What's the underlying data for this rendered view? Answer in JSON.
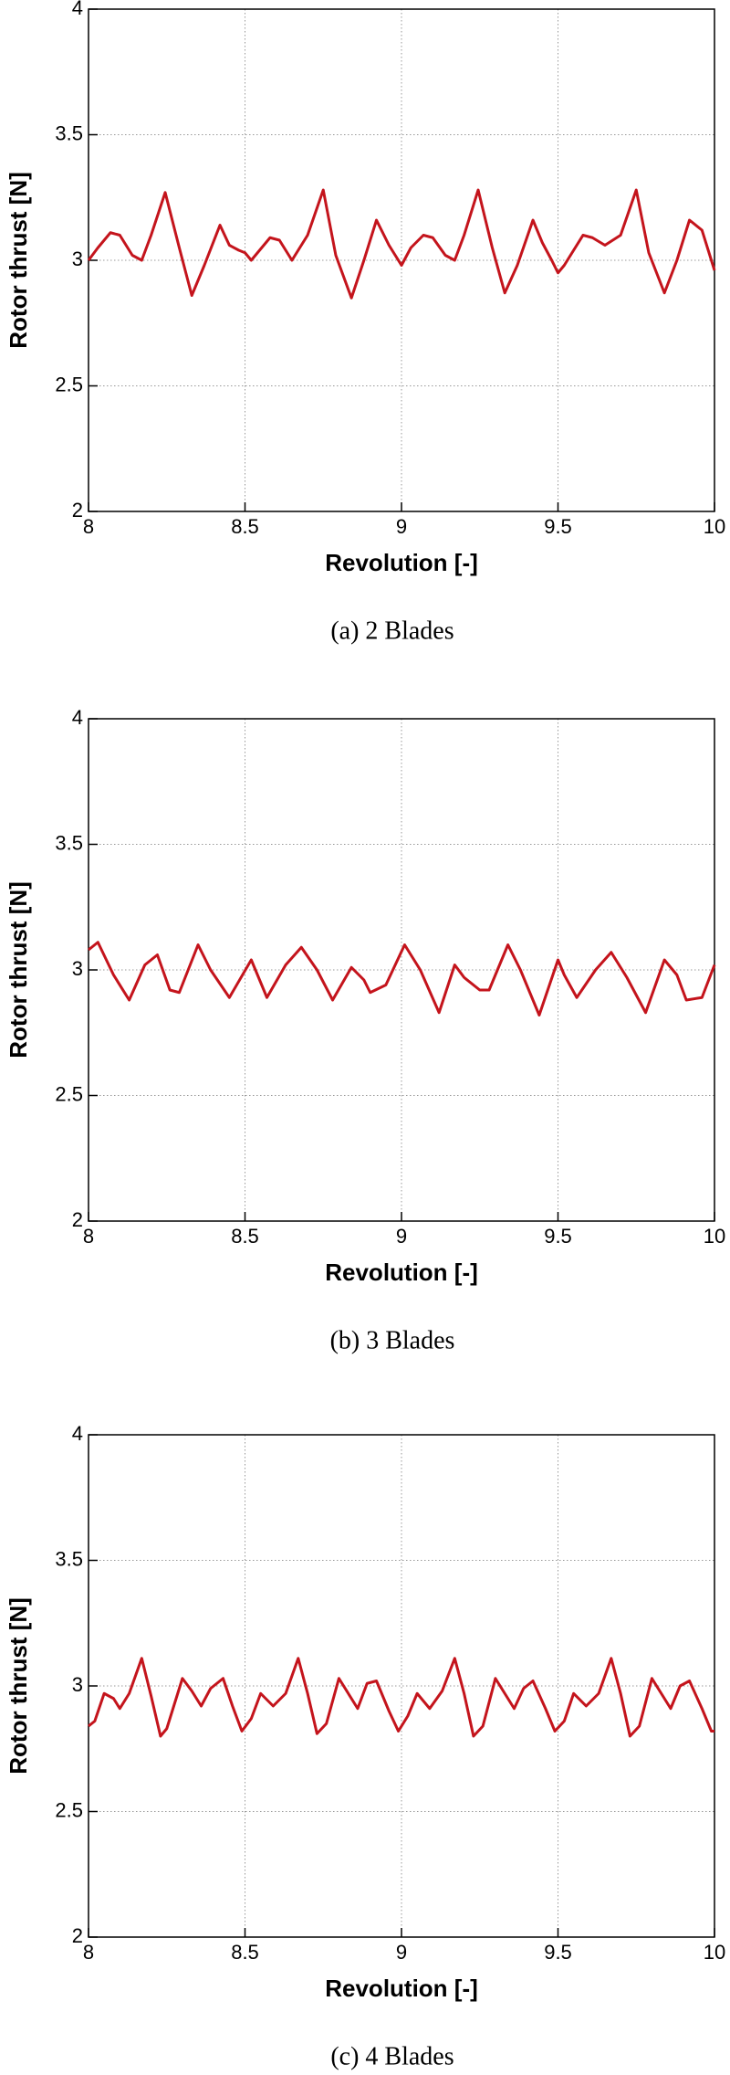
{
  "chart_data": [
    {
      "type": "line",
      "caption": "(a)  2  Blades",
      "x_label": "Revolution [-]",
      "y_label": "Rotor thrust [N]",
      "xlim": [
        8,
        10
      ],
      "ylim": [
        2,
        4
      ],
      "xticks": [
        8,
        8.5,
        9,
        9.5,
        10
      ],
      "yticks": [
        2,
        2.5,
        3,
        3.5,
        4
      ],
      "grid": true,
      "color": "#c4141c",
      "x": [
        8,
        8.03,
        8.07,
        8.1,
        8.14,
        8.17,
        8.2,
        8.245,
        8.29,
        8.33,
        8.37,
        8.42,
        8.45,
        8.48,
        8.5,
        8.52,
        8.58,
        8.61,
        8.65,
        8.7,
        8.75,
        8.79,
        8.84,
        8.88,
        8.92,
        8.96,
        9,
        9.03,
        9.07,
        9.1,
        9.14,
        9.17,
        9.2,
        9.245,
        9.29,
        9.33,
        9.37,
        9.42,
        9.45,
        9.48,
        9.5,
        9.52,
        9.58,
        9.61,
        9.65,
        9.7,
        9.75,
        9.79,
        9.84,
        9.88,
        9.92,
        9.96,
        10
      ],
      "values": [
        3.0,
        3.05,
        3.11,
        3.1,
        3.02,
        3.0,
        3.1,
        3.27,
        3.05,
        2.86,
        2.98,
        3.14,
        3.06,
        3.04,
        3.03,
        3.0,
        3.09,
        3.08,
        3.0,
        3.1,
        3.28,
        3.02,
        2.85,
        3.0,
        3.16,
        3.06,
        2.98,
        3.05,
        3.1,
        3.09,
        3.02,
        3.0,
        3.1,
        3.28,
        3.05,
        2.87,
        2.98,
        3.16,
        3.07,
        3.0,
        2.95,
        2.98,
        3.1,
        3.09,
        3.06,
        3.1,
        3.28,
        3.03,
        2.87,
        3.0,
        3.16,
        3.12,
        2.96
      ]
    },
    {
      "type": "line",
      "caption": "(b)  3  Blades",
      "x_label": "Revolution [-]",
      "y_label": "Rotor thrust [N]",
      "xlim": [
        8,
        10
      ],
      "ylim": [
        2,
        4
      ],
      "xticks": [
        8,
        8.5,
        9,
        9.5,
        10
      ],
      "yticks": [
        2,
        2.5,
        3,
        3.5,
        4
      ],
      "grid": true,
      "color": "#c4141c",
      "x": [
        8,
        8.03,
        8.08,
        8.13,
        8.18,
        8.22,
        8.26,
        8.29,
        8.35,
        8.39,
        8.45,
        8.52,
        8.57,
        8.63,
        8.68,
        8.73,
        8.78,
        8.84,
        8.88,
        8.9,
        8.95,
        9.01,
        9.06,
        9.12,
        9.17,
        9.2,
        9.25,
        9.28,
        9.34,
        9.38,
        9.44,
        9.5,
        9.52,
        9.56,
        9.62,
        9.67,
        9.72,
        9.78,
        9.84,
        9.88,
        9.91,
        9.96,
        10
      ],
      "values": [
        3.08,
        3.11,
        2.98,
        2.88,
        3.02,
        3.06,
        2.92,
        2.91,
        3.1,
        3.0,
        2.89,
        3.04,
        2.89,
        3.02,
        3.09,
        3.0,
        2.88,
        3.01,
        2.96,
        2.91,
        2.94,
        3.1,
        3.0,
        2.83,
        3.02,
        2.97,
        2.92,
        2.92,
        3.1,
        3.0,
        2.82,
        3.04,
        2.98,
        2.89,
        3.0,
        3.07,
        2.97,
        2.83,
        3.04,
        2.98,
        2.88,
        2.89,
        3.02
      ]
    },
    {
      "type": "line",
      "caption": "(c)  4  Blades",
      "x_label": "Revolution [-]",
      "y_label": "Rotor thrust [N]",
      "xlim": [
        8,
        10
      ],
      "ylim": [
        2,
        4
      ],
      "xticks": [
        8,
        8.5,
        9,
        9.5,
        10
      ],
      "yticks": [
        2,
        2.5,
        3,
        3.5,
        4
      ],
      "grid": true,
      "color": "#c4141c",
      "x": [
        8,
        8.02,
        8.05,
        8.08,
        8.1,
        8.13,
        8.17,
        8.2,
        8.23,
        8.25,
        8.3,
        8.33,
        8.36,
        8.39,
        8.43,
        8.46,
        8.49,
        8.52,
        8.55,
        8.59,
        8.63,
        8.67,
        8.7,
        8.73,
        8.76,
        8.8,
        8.83,
        8.86,
        8.89,
        8.92,
        8.96,
        8.99,
        9.02,
        9.05,
        9.09,
        9.13,
        9.17,
        9.2,
        9.23,
        9.26,
        9.3,
        9.33,
        9.36,
        9.39,
        9.42,
        9.46,
        9.49,
        9.52,
        9.55,
        9.59,
        9.63,
        9.67,
        9.7,
        9.73,
        9.76,
        9.8,
        9.83,
        9.86,
        9.89,
        9.92,
        9.96,
        9.99,
        10
      ],
      "values": [
        2.84,
        2.86,
        2.97,
        2.95,
        2.91,
        2.97,
        3.11,
        2.96,
        2.8,
        2.83,
        3.03,
        2.98,
        2.92,
        2.99,
        3.03,
        2.92,
        2.82,
        2.87,
        2.97,
        2.92,
        2.97,
        3.11,
        2.97,
        2.81,
        2.85,
        3.03,
        2.97,
        2.91,
        3.01,
        3.02,
        2.9,
        2.82,
        2.88,
        2.97,
        2.91,
        2.98,
        3.11,
        2.97,
        2.8,
        2.84,
        3.03,
        2.97,
        2.91,
        2.99,
        3.02,
        2.91,
        2.82,
        2.86,
        2.97,
        2.92,
        2.97,
        3.11,
        2.97,
        2.8,
        2.84,
        3.03,
        2.97,
        2.91,
        3.0,
        3.02,
        2.91,
        2.82,
        2.82
      ]
    }
  ]
}
